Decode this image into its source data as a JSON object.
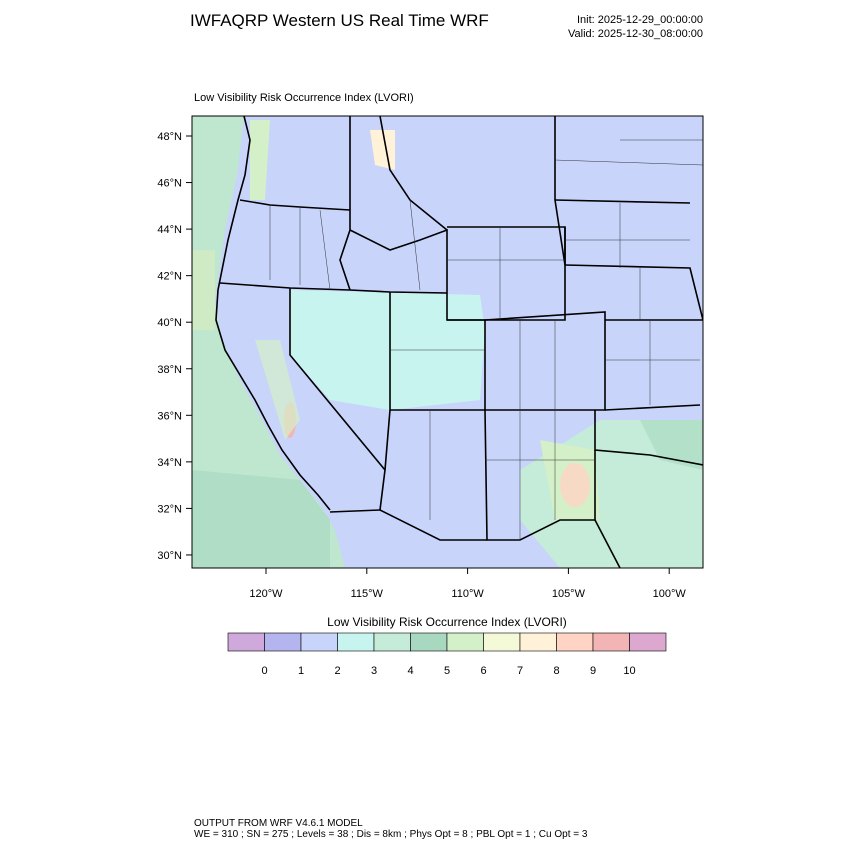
{
  "header": {
    "title": "IWFAQRP Western US Real Time WRF",
    "init": "Init: 2025-12-29_00:00:00",
    "valid": "Valid: 2025-12-30_08:00:00"
  },
  "map": {
    "subtitle": "Low Visibility Risk Occurrence Index   (LVORI)",
    "lat_labels": [
      "48°N",
      "46°N",
      "44°N",
      "42°N",
      "40°N",
      "38°N",
      "36°N",
      "34°N",
      "32°N",
      "30°N"
    ],
    "lon_labels": [
      "120°W",
      "115°W",
      "110°W",
      "105°W",
      "100°W"
    ]
  },
  "colorbar": {
    "title": "Low Visibility Risk Occurrence Index  (LVORI)",
    "labels": [
      0,
      1,
      2,
      3,
      4,
      5,
      6,
      7,
      8,
      9,
      10
    ],
    "colors": [
      "#cfa8dc",
      "#b4b4ee",
      "#c8d4fa",
      "#c8f4f0",
      "#c4ecd8",
      "#a8d8c0",
      "#d4f0c8",
      "#f4fad8",
      "#fff2d8",
      "#ffd4c4",
      "#f2b4b4",
      "#dca8d0"
    ]
  },
  "footer": {
    "line1": "OUTPUT FROM WRF V4.6.1 MODEL",
    "line2": "WE = 310 ; SN = 275 ; Levels = 38 ; Dis = 8km ; Phys Opt = 8 ; PBL Opt = 1 ; Cu Opt = 3"
  }
}
